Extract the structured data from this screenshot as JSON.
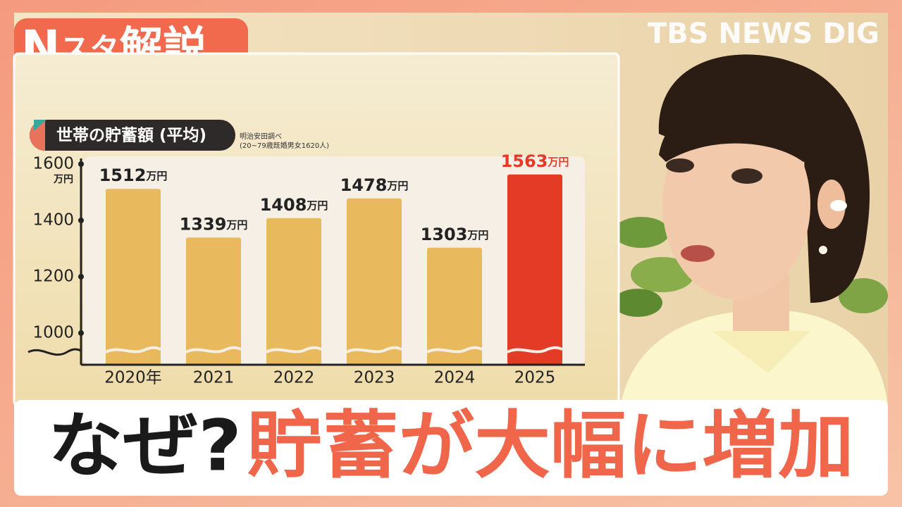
{
  "logo": {
    "parts": [
      "N",
      "スタ",
      "解説"
    ]
  },
  "brand": "TBS NEWS DIG",
  "chart_data": {
    "type": "bar",
    "title": "世帯の貯蓄額 (平均)",
    "source": [
      "明治安田調べ",
      "(20~79歳既婚男女1620人)"
    ],
    "y_unit": "万円",
    "value_unit": "万円",
    "categories": [
      "2020年",
      "2021",
      "2022",
      "2023",
      "2024",
      "2025"
    ],
    "values": [
      1512,
      1339,
      1408,
      1478,
      1303,
      1563
    ],
    "bar_colors": [
      "#e9b95e",
      "#e9b95e",
      "#e9b95e",
      "#e9b95e",
      "#e9b95e",
      "#e33b25"
    ],
    "label_colors": [
      "#222222",
      "#222222",
      "#222222",
      "#222222",
      "#222222",
      "#e33b25"
    ],
    "ylim": [
      887.5,
      1627.5
    ],
    "yticks": [
      1000,
      1200,
      1400,
      1600
    ]
  },
  "caption": {
    "lead": "なぜ?",
    "main": "貯蓄が大幅に増加"
  }
}
